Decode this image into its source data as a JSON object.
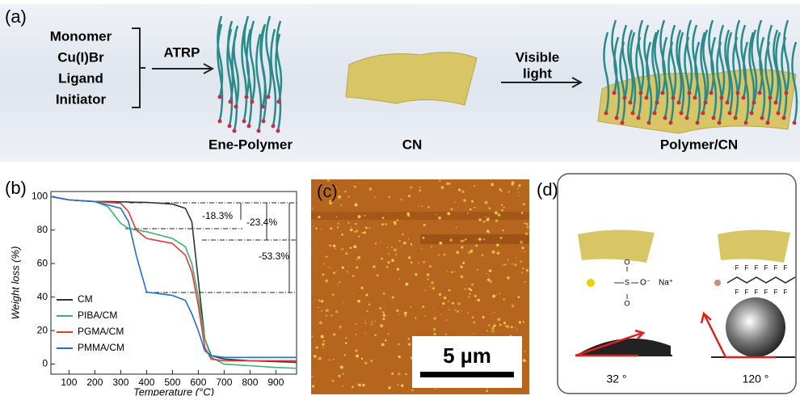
{
  "panel_a": {
    "label": "(a)",
    "reagents": [
      "Monomer",
      "Cu(I)Br",
      "Ligand",
      "Initiator"
    ],
    "arrow_1": "ATRP",
    "arrow_2": [
      "Visible",
      "light"
    ],
    "captions": [
      "Ene-Polymer",
      "CN",
      "Polymer/CN"
    ]
  },
  "chart_data": {
    "type": "line",
    "label": "(b)",
    "x_label": "Temperature (°C)",
    "y_label": "Weight loss (%)",
    "x": [
      30,
      100,
      200,
      250,
      300,
      330,
      360,
      400,
      450,
      500,
      550,
      575,
      600,
      625,
      650,
      700,
      800,
      900,
      980
    ],
    "series": [
      {
        "name": "CM",
        "color": "#333333",
        "values": [
          100,
          98,
          97,
          97,
          96.8,
          96.7,
          96.6,
          96.5,
          96,
          95.5,
          93,
          85,
          50,
          15,
          5,
          3,
          2,
          1.5,
          1
        ]
      },
      {
        "name": "PIBA/CM",
        "color": "#3cb371",
        "values": [
          100,
          98,
          97,
          94,
          84,
          81,
          80,
          79,
          77,
          75,
          70,
          60,
          40,
          15,
          4,
          0,
          -1,
          -2,
          -2.5
        ]
      },
      {
        "name": "PGMA/CM",
        "color": "#e53935",
        "values": [
          100,
          98,
          97,
          96.5,
          96,
          91,
          80,
          75,
          73.5,
          72,
          65,
          55,
          35,
          10,
          3,
          2,
          2,
          2,
          2
        ]
      },
      {
        "name": "PMMA/CM",
        "color": "#1e6fd6",
        "values": [
          100,
          98,
          97,
          95,
          93,
          85,
          65,
          43,
          42,
          41,
          38,
          30,
          20,
          8,
          5,
          4,
          4,
          4,
          4
        ]
      }
    ],
    "xlim": [
      30,
      980
    ],
    "xticks": [
      100,
      200,
      300,
      400,
      500,
      600,
      700,
      800,
      900
    ],
    "ylim": [
      -6,
      103
    ],
    "yticks": [
      0,
      20,
      40,
      60,
      80,
      100
    ],
    "legend": "lower-left",
    "annotations": [
      "-18.3%",
      "-23.4%",
      "-53.3%"
    ]
  },
  "panel_c": {
    "label": "(c)",
    "scale_bar": "5 µm"
  },
  "panel_d": {
    "label": "(d)",
    "counter_ion": "Na⁺",
    "anion": "O⁻",
    "fluorine": "F",
    "angles": [
      "32 °",
      "120 °"
    ]
  }
}
